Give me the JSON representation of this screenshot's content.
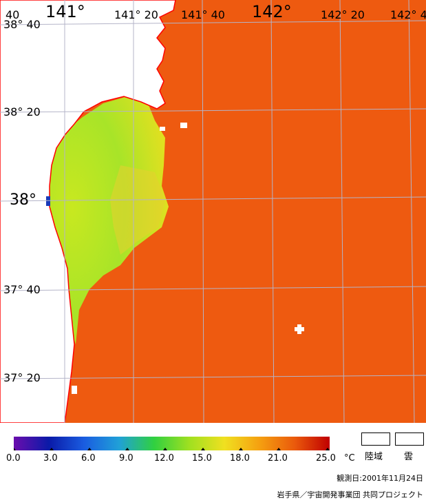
{
  "map": {
    "lon_labels": [
      {
        "text": "40"
      },
      {
        "text": "141°"
      },
      {
        "text": "141° 20"
      },
      {
        "text": "141° 40"
      },
      {
        "text": "142°"
      },
      {
        "text": "142° 20"
      },
      {
        "text": "142° 4"
      }
    ],
    "lat_labels": [
      {
        "text": "38° 40"
      },
      {
        "text": "38° 20"
      },
      {
        "text": "38°"
      },
      {
        "text": "37° 40"
      },
      {
        "text": "37° 20"
      }
    ],
    "colors": {
      "land": "#ffffff",
      "coastline": "#ff0000",
      "grid": "#b4b4c8",
      "offshore_water": "#ee5a10",
      "coastal_water": "#b0e820",
      "cloud": "#ffffff"
    }
  },
  "legend": {
    "ticks": [
      "0.0",
      "3.0",
      "6.0",
      "9.0",
      "12.0",
      "15.0",
      "18.0",
      "21.0",
      "25.0"
    ],
    "unit": "°C",
    "land_label": "陸域",
    "cloud_label": "雲",
    "colors": [
      "#6a0dad",
      "#0a1aa8",
      "#1a5ce0",
      "#20a0d8",
      "#30d040",
      "#a0e020",
      "#f0e020",
      "#f5a010",
      "#ea5a0c",
      "#c00000"
    ]
  },
  "footer": {
    "observation_date": "観測日:2001年11月24日",
    "credit": "岩手県／宇宙開発事業団 共同プロジェクト"
  }
}
